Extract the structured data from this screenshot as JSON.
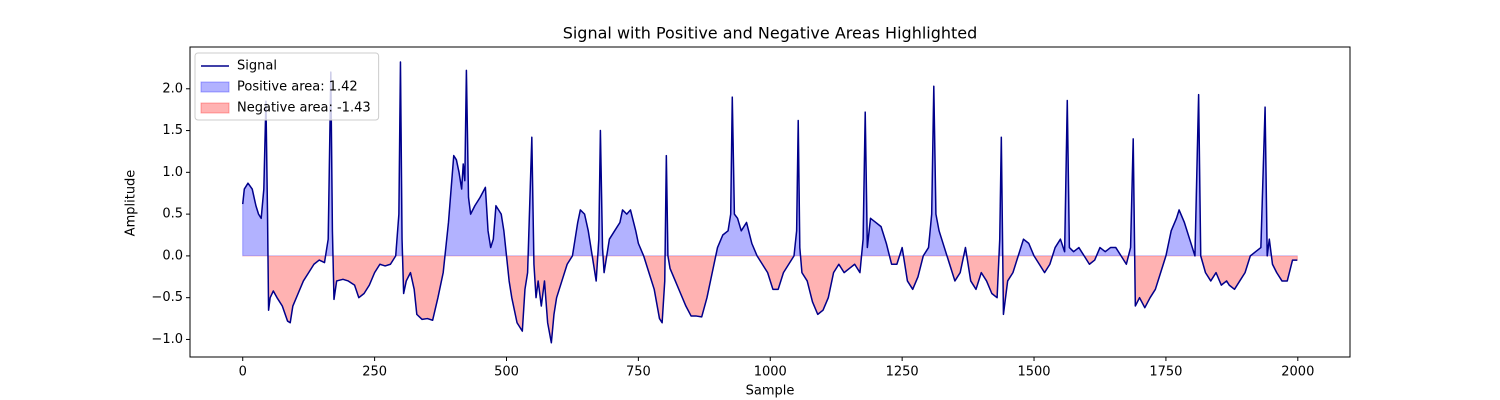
{
  "chart_data": {
    "type": "line",
    "title": "Signal with Positive and Negative Areas Highlighted",
    "xlabel": "Sample",
    "ylabel": "Amplitude",
    "x": [
      0,
      3,
      10,
      18,
      25,
      30,
      35,
      40,
      44,
      47,
      49,
      52,
      58,
      65,
      75,
      85,
      90,
      95,
      105,
      115,
      125,
      135,
      145,
      155,
      162,
      167,
      170,
      173,
      178,
      190,
      200,
      212,
      220,
      230,
      240,
      250,
      260,
      270,
      280,
      290,
      296,
      299,
      302,
      305,
      310,
      318,
      325,
      330,
      340,
      350,
      360,
      370,
      380,
      385,
      390,
      395,
      400,
      405,
      410,
      415,
      418,
      421,
      424,
      428,
      432,
      440,
      450,
      460,
      465,
      470,
      475,
      480,
      490,
      495,
      500,
      505,
      510,
      520,
      530,
      535,
      540,
      548,
      552,
      556,
      560,
      566,
      572,
      578,
      585,
      590,
      595,
      605,
      615,
      625,
      630,
      635,
      640,
      648,
      655,
      660,
      665,
      670,
      675,
      678,
      682,
      685,
      695,
      705,
      715,
      720,
      728,
      735,
      745,
      750,
      760,
      770,
      780,
      790,
      795,
      800,
      803,
      806,
      810,
      820,
      830,
      840,
      850,
      860,
      870,
      880,
      890,
      900,
      910,
      920,
      925,
      928,
      932,
      938,
      945,
      955,
      965,
      975,
      985,
      995,
      1005,
      1015,
      1025,
      1035,
      1045,
      1050,
      1053,
      1056,
      1060,
      1070,
      1080,
      1090,
      1100,
      1110,
      1120,
      1130,
      1140,
      1150,
      1160,
      1170,
      1176,
      1180,
      1184,
      1190,
      1200,
      1210,
      1220,
      1230,
      1240,
      1250,
      1260,
      1270,
      1280,
      1290,
      1300,
      1306,
      1310,
      1314,
      1320,
      1330,
      1340,
      1350,
      1360,
      1370,
      1380,
      1390,
      1400,
      1410,
      1420,
      1430,
      1435,
      1438,
      1442,
      1450,
      1460,
      1470,
      1480,
      1490,
      1500,
      1510,
      1520,
      1530,
      1540,
      1550,
      1558,
      1563,
      1567,
      1575,
      1585,
      1595,
      1605,
      1615,
      1625,
      1635,
      1645,
      1655,
      1665,
      1675,
      1683,
      1688,
      1692,
      1700,
      1710,
      1720,
      1730,
      1740,
      1750,
      1760,
      1770,
      1775,
      1785,
      1795,
      1805,
      1812,
      1816,
      1825,
      1835,
      1845,
      1855,
      1865,
      1870,
      1880,
      1890,
      1900,
      1910,
      1920,
      1930,
      1938,
      1942,
      1946,
      1952,
      1960,
      1970,
      1980,
      1990,
      1999
    ],
    "series": [
      {
        "name": "Signal",
        "color": "#00008b",
        "values": [
          0.62,
          0.8,
          0.87,
          0.8,
          0.6,
          0.5,
          0.45,
          0.8,
          1.85,
          0.5,
          -0.65,
          -0.5,
          -0.42,
          -0.5,
          -0.6,
          -0.78,
          -0.8,
          -0.6,
          -0.45,
          -0.3,
          -0.2,
          -0.1,
          -0.05,
          -0.08,
          0.2,
          2.2,
          0.3,
          -0.52,
          -0.3,
          -0.28,
          -0.3,
          -0.35,
          -0.5,
          -0.45,
          -0.35,
          -0.2,
          -0.1,
          -0.12,
          -0.1,
          0.0,
          0.5,
          2.32,
          0.2,
          -0.45,
          -0.3,
          -0.2,
          -0.4,
          -0.7,
          -0.76,
          -0.75,
          -0.77,
          -0.5,
          -0.2,
          0.1,
          0.4,
          0.8,
          1.2,
          1.15,
          1.0,
          0.8,
          1.1,
          0.9,
          2.22,
          0.7,
          0.5,
          0.6,
          0.7,
          0.82,
          0.3,
          0.1,
          0.2,
          0.6,
          0.5,
          0.3,
          0.0,
          -0.3,
          -0.5,
          -0.8,
          -0.9,
          -0.4,
          -0.2,
          1.42,
          -0.1,
          -0.5,
          -0.3,
          -0.6,
          -0.3,
          -0.8,
          -1.04,
          -0.7,
          -0.5,
          -0.3,
          -0.1,
          0.0,
          0.2,
          0.4,
          0.55,
          0.5,
          0.3,
          0.1,
          -0.1,
          -0.3,
          0.2,
          1.5,
          0.1,
          -0.2,
          0.2,
          0.3,
          0.4,
          0.55,
          0.5,
          0.55,
          0.3,
          0.15,
          0.0,
          -0.2,
          -0.4,
          -0.75,
          -0.8,
          -0.3,
          1.2,
          0.0,
          -0.15,
          -0.3,
          -0.45,
          -0.6,
          -0.72,
          -0.72,
          -0.73,
          -0.5,
          -0.2,
          0.1,
          0.25,
          0.3,
          0.5,
          1.9,
          0.5,
          0.45,
          0.3,
          0.4,
          0.15,
          0.0,
          -0.1,
          -0.2,
          -0.4,
          -0.4,
          -0.2,
          -0.1,
          0.0,
          0.3,
          1.62,
          0.1,
          -0.2,
          -0.3,
          -0.55,
          -0.7,
          -0.65,
          -0.5,
          -0.2,
          -0.1,
          -0.2,
          -0.15,
          -0.1,
          -0.2,
          0.2,
          1.72,
          0.1,
          0.45,
          0.4,
          0.35,
          0.15,
          -0.1,
          -0.1,
          0.1,
          -0.3,
          -0.4,
          -0.25,
          0.0,
          0.1,
          0.5,
          2.03,
          0.5,
          0.3,
          0.1,
          -0.1,
          -0.3,
          -0.2,
          0.1,
          -0.3,
          -0.4,
          -0.2,
          -0.3,
          -0.45,
          -0.5,
          0.2,
          1.42,
          -0.7,
          -0.3,
          -0.2,
          0.0,
          0.2,
          0.15,
          0.0,
          -0.1,
          -0.2,
          -0.1,
          0.1,
          0.2,
          0.05,
          1.86,
          0.1,
          0.05,
          0.1,
          0.0,
          -0.1,
          -0.05,
          0.1,
          0.05,
          0.1,
          0.1,
          0.0,
          -0.1,
          0.1,
          1.4,
          -0.6,
          -0.5,
          -0.62,
          -0.5,
          -0.4,
          -0.2,
          0.0,
          0.3,
          0.45,
          0.55,
          0.4,
          0.2,
          0.0,
          1.93,
          0.0,
          -0.2,
          -0.3,
          -0.2,
          -0.35,
          -0.3,
          -0.35,
          -0.4,
          -0.3,
          -0.2,
          0.0,
          0.05,
          0.1,
          1.78,
          0.0,
          0.2,
          -0.1,
          -0.2,
          -0.3,
          -0.3,
          -0.05,
          -0.05
        ]
      }
    ],
    "fills": [
      {
        "name": "Positive area: 1.42",
        "color": "#0000ff",
        "where": "positive"
      },
      {
        "name": "Negative area: -1.43",
        "color": "#ff0000",
        "where": "negative"
      }
    ],
    "xlim": [
      -99.95,
      2098.95
    ],
    "ylim": [
      -1.21,
      2.5
    ],
    "xticks": [
      0,
      250,
      500,
      750,
      1000,
      1250,
      1500,
      1750,
      2000
    ],
    "yticks": [
      {
        "value": -1,
        "label": "−1.0"
      },
      {
        "value": -0.5,
        "label": "−0.5"
      },
      {
        "value": 0,
        "label": "0.0"
      },
      {
        "value": 0.5,
        "label": "0.5"
      },
      {
        "value": 1,
        "label": "1.0"
      },
      {
        "value": 1.5,
        "label": "1.5"
      },
      {
        "value": 2,
        "label": "2.0"
      }
    ],
    "legend": "upper left"
  }
}
